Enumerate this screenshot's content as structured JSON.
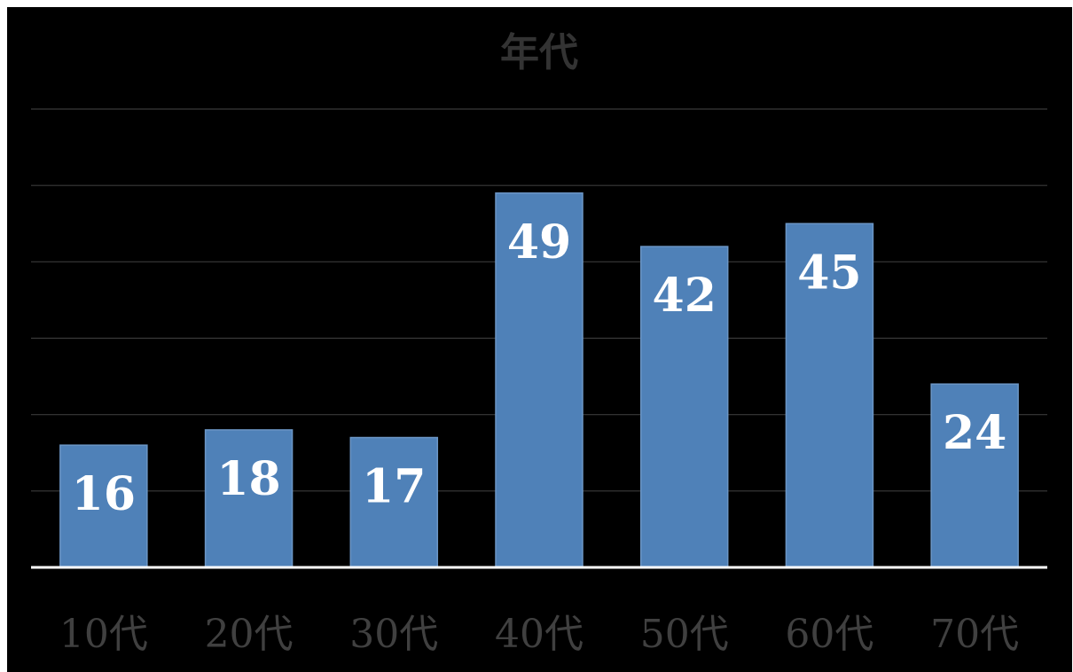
{
  "chart_data": {
    "type": "bar",
    "title": "年代",
    "categories": [
      "10代",
      "20代",
      "30代",
      "40代",
      "50代",
      "60代",
      "70代"
    ],
    "values": [
      16,
      18,
      17,
      49,
      42,
      45,
      24
    ],
    "data_labels": [
      "16",
      "18",
      "17",
      "49",
      "42",
      "45",
      "24"
    ],
    "ylim": [
      0,
      60
    ],
    "grid": true,
    "legend": "none",
    "colors": {
      "bar": "#4f81b8",
      "bar_edge": "#6b96c6",
      "background": "#000000",
      "gridline": "#3a3a3a",
      "baseline": "#ffffff",
      "title": "#333333",
      "tick": "#404040",
      "data_label": "#ffffff"
    }
  }
}
